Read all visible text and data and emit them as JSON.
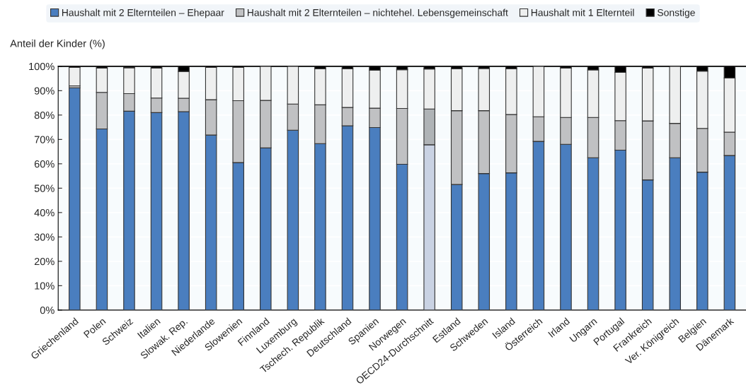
{
  "chart_data": {
    "type": "bar",
    "stacked": true,
    "ylabel": "Anteil der Kinder (%)",
    "categories": [
      "Griechenland",
      "Polen",
      "Schweiz",
      "Italien",
      "Slowak. Rep.",
      "Niederlande",
      "Slowenien",
      "Finnland",
      "Luxemburg",
      "Tschech. Republik",
      "Deutschland",
      "Spanien",
      "Norwegen",
      "OECD24-Durchschnitt",
      "Estland",
      "Schweden",
      "Island",
      "Österreich",
      "Irland",
      "Ungarn",
      "Portugal",
      "Frankreich",
      "Ver. Königreich",
      "Belgien",
      "Dänemark"
    ],
    "series": [
      {
        "name": "Haushalt mit 2 Elternteilen – Ehepaar",
        "color": "#4a7ebf",
        "colors": [
          "#4a7ebf",
          "#4a7ebf",
          "#4a7ebf",
          "#4a7ebf",
          "#4a7ebf",
          "#4a7ebf",
          "#4a7ebf",
          "#4a7ebf",
          "#4a7ebf",
          "#4a7ebf",
          "#4a7ebf",
          "#4a7ebf",
          "#4a7ebf",
          "#c9d2e3",
          "#4a7ebf",
          "#4a7ebf",
          "#4a7ebf",
          "#4a7ebf",
          "#4a7ebf",
          "#4a7ebf",
          "#4a7ebf",
          "#4a7ebf",
          "#4a7ebf",
          "#4a7ebf",
          "#4a7ebf"
        ],
        "values": [
          91.2,
          74.3,
          81.6,
          81.0,
          81.4,
          71.8,
          60.5,
          66.5,
          73.8,
          68.3,
          75.6,
          74.9,
          59.8,
          67.8,
          51.5,
          56.0,
          56.3,
          69.2,
          68.0,
          62.5,
          65.6,
          53.4,
          62.5,
          56.6,
          63.4
        ]
      },
      {
        "name": "Haushalt mit 2 Elternteilen – nichtehel. Lebensgemeinschaft",
        "color": "#c0c1c3",
        "colors": [
          "#c0c1c3",
          "#c0c1c3",
          "#c0c1c3",
          "#c0c1c3",
          "#c0c1c3",
          "#c0c1c3",
          "#c0c1c3",
          "#c0c1c3",
          "#c0c1c3",
          "#c0c1c3",
          "#c0c1c3",
          "#c0c1c3",
          "#c0c1c3",
          "#afb3b6",
          "#c0c1c3",
          "#c0c1c3",
          "#c0c1c3",
          "#c0c1c3",
          "#c0c1c3",
          "#c0c1c3",
          "#c0c1c3",
          "#c0c1c3",
          "#c0c1c3",
          "#c0c1c3",
          "#c0c1c3"
        ],
        "values": [
          0.8,
          15.0,
          7.2,
          6.0,
          5.5,
          14.5,
          25.4,
          19.5,
          10.7,
          15.9,
          7.5,
          7.9,
          22.9,
          14.7,
          30.3,
          25.8,
          23.9,
          10.1,
          11.0,
          16.5,
          12.1,
          24.2,
          14.1,
          17.9,
          9.6
        ]
      },
      {
        "name": "Haushalt mit 1 Elternteil",
        "color": "#eeefef",
        "values": [
          7.5,
          10.0,
          10.6,
          12.3,
          11.0,
          13.2,
          13.6,
          14.0,
          15.5,
          14.8,
          15.9,
          15.6,
          15.9,
          16.4,
          17.2,
          17.3,
          18.8,
          20.7,
          20.3,
          19.5,
          19.8,
          21.7,
          23.4,
          23.5,
          22.2
        ]
      },
      {
        "name": "Sonstige",
        "color": "#000000",
        "values": [
          0.5,
          0.7,
          0.6,
          0.7,
          2.1,
          0.5,
          0.5,
          0.0,
          0.0,
          1.0,
          1.0,
          1.6,
          1.4,
          1.1,
          1.0,
          0.9,
          1.0,
          0.0,
          0.7,
          1.5,
          2.5,
          0.7,
          0.0,
          2.0,
          4.8
        ]
      }
    ],
    "ylim": [
      0,
      100
    ],
    "yticks": [
      {
        "value": 0,
        "label": "0%"
      },
      {
        "value": 10,
        "label": "10%"
      },
      {
        "value": 20,
        "label": "20%"
      },
      {
        "value": 30,
        "label": "30%"
      },
      {
        "value": 40,
        "label": "40%"
      },
      {
        "value": 50,
        "label": "50%"
      },
      {
        "value": 60,
        "label": "60%"
      },
      {
        "value": 70,
        "label": "70%"
      },
      {
        "value": 80,
        "label": "80%"
      },
      {
        "value": 90,
        "label": "90%"
      },
      {
        "value": 100,
        "label": "100%"
      }
    ],
    "grid": "y",
    "legend": "top"
  }
}
